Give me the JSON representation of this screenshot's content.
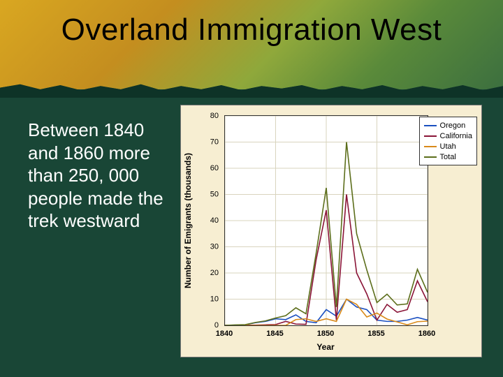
{
  "slide": {
    "title": "Overland Immigration West",
    "body_text": "Between 1840 and 1860 more than 250, 000 people made the trek westward",
    "background_color": "#194636",
    "title_band_gradient": [
      "#d9a721",
      "#c48e1f",
      "#8fa83b",
      "#5a8a3a",
      "#3c6f3f"
    ]
  },
  "chart": {
    "type": "line",
    "panel_bg": "#f7eed2",
    "plot_bg": "#ffffff",
    "grid_color": "#d9d4be",
    "x": {
      "label": "Year",
      "min": 1840,
      "max": 1860,
      "ticks": [
        1840,
        1845,
        1850,
        1855,
        1860
      ],
      "labels": [
        "1840",
        "1845",
        "1850",
        "1855",
        "1860"
      ]
    },
    "y": {
      "label": "Number of Emigrants (thousands)",
      "min": 0,
      "max": 80,
      "ticks": [
        0,
        10,
        20,
        30,
        40,
        50,
        60,
        70,
        80
      ],
      "labels": [
        "0",
        "10",
        "20",
        "30",
        "40",
        "50",
        "60",
        "70",
        "80"
      ]
    },
    "series": [
      {
        "name": "Oregon",
        "color": "#1a4fc0",
        "values": [
          [
            1840,
            0
          ],
          [
            1841,
            0.1
          ],
          [
            1842,
            0.2
          ],
          [
            1843,
            1
          ],
          [
            1844,
            1.5
          ],
          [
            1845,
            2.5
          ],
          [
            1846,
            2.2
          ],
          [
            1847,
            4
          ],
          [
            1848,
            1.5
          ],
          [
            1849,
            1
          ],
          [
            1850,
            6
          ],
          [
            1851,
            3.5
          ],
          [
            1852,
            10
          ],
          [
            1853,
            7
          ],
          [
            1854,
            6
          ],
          [
            1855,
            2
          ],
          [
            1856,
            1.5
          ],
          [
            1857,
            1.5
          ],
          [
            1858,
            2
          ],
          [
            1859,
            3
          ],
          [
            1860,
            2
          ]
        ]
      },
      {
        "name": "California",
        "color": "#8a1437",
        "values": [
          [
            1840,
            0
          ],
          [
            1841,
            0.05
          ],
          [
            1842,
            0.05
          ],
          [
            1843,
            0.1
          ],
          [
            1844,
            0.2
          ],
          [
            1845,
            0.3
          ],
          [
            1846,
            1.5
          ],
          [
            1847,
            0.5
          ],
          [
            1848,
            0.4
          ],
          [
            1849,
            25
          ],
          [
            1850,
            44
          ],
          [
            1851,
            2
          ],
          [
            1852,
            50
          ],
          [
            1853,
            20
          ],
          [
            1854,
            12
          ],
          [
            1855,
            2
          ],
          [
            1856,
            8
          ],
          [
            1857,
            5
          ],
          [
            1858,
            6
          ],
          [
            1859,
            17
          ],
          [
            1860,
            9
          ]
        ]
      },
      {
        "name": "Utah",
        "color": "#d98a1a",
        "values": [
          [
            1840,
            0
          ],
          [
            1841,
            0
          ],
          [
            1842,
            0
          ],
          [
            1843,
            0
          ],
          [
            1844,
            0
          ],
          [
            1845,
            0
          ],
          [
            1846,
            0
          ],
          [
            1847,
            2.2
          ],
          [
            1848,
            2.5
          ],
          [
            1849,
            1.5
          ],
          [
            1850,
            2.5
          ],
          [
            1851,
            1.5
          ],
          [
            1852,
            10
          ],
          [
            1853,
            8
          ],
          [
            1854,
            3.2
          ],
          [
            1855,
            4.7
          ],
          [
            1856,
            2.4
          ],
          [
            1857,
            1.3
          ],
          [
            1858,
            0.2
          ],
          [
            1859,
            1.4
          ],
          [
            1860,
            1.6
          ]
        ]
      },
      {
        "name": "Total",
        "color": "#5c6e1b",
        "values": [
          [
            1840,
            0
          ],
          [
            1841,
            0.15
          ],
          [
            1842,
            0.25
          ],
          [
            1843,
            1.1
          ],
          [
            1844,
            1.7
          ],
          [
            1845,
            2.8
          ],
          [
            1846,
            3.7
          ],
          [
            1847,
            6.7
          ],
          [
            1848,
            4.4
          ],
          [
            1849,
            27.5
          ],
          [
            1850,
            52.5
          ],
          [
            1851,
            7
          ],
          [
            1852,
            70
          ],
          [
            1853,
            35
          ],
          [
            1854,
            21.2
          ],
          [
            1855,
            8.7
          ],
          [
            1856,
            11.9
          ],
          [
            1857,
            7.8
          ],
          [
            1858,
            8.2
          ],
          [
            1859,
            21.4
          ],
          [
            1860,
            12.6
          ]
        ]
      }
    ],
    "legend": {
      "position": "upper-right",
      "fontsize": 11
    }
  }
}
